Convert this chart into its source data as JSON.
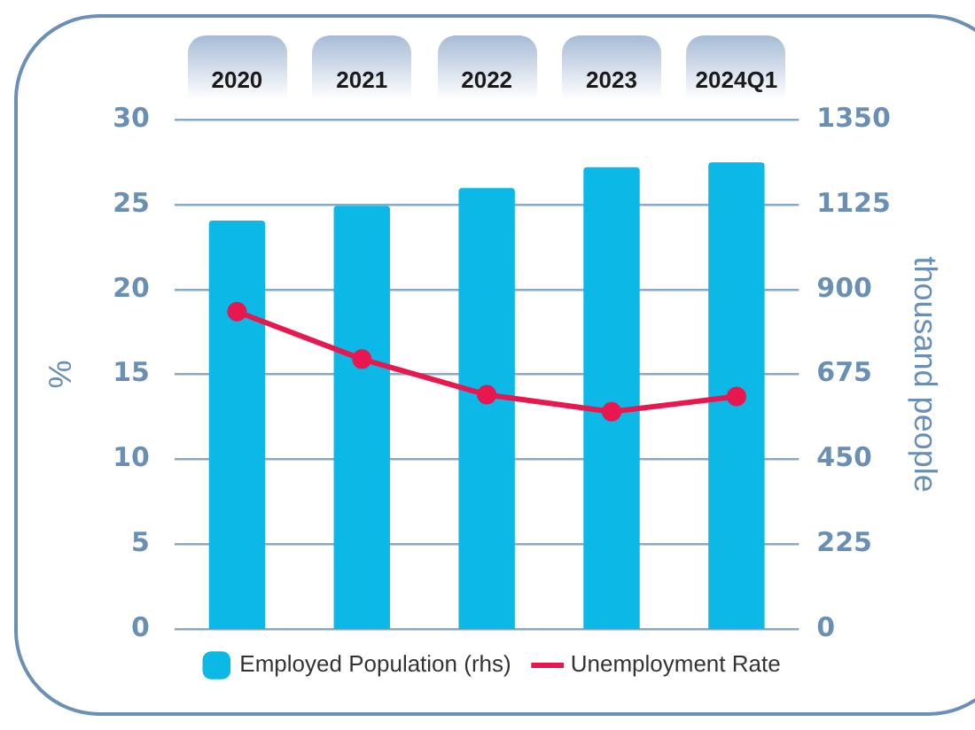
{
  "chart_data": {
    "type": "bar",
    "categories": [
      "2020",
      "2021",
      "2022",
      "2023",
      "2024Q1"
    ],
    "series": [
      {
        "name": "Employed Population (rhs)",
        "color": "#0bb8e6",
        "axis": "y2",
        "values": [
          1083,
          1122,
          1169,
          1224,
          1237
        ]
      },
      {
        "name": "Unemployment Rate",
        "type": "line",
        "color": "#e8174f",
        "values": [
          18.7,
          15.9,
          13.8,
          12.8,
          13.7
        ]
      }
    ],
    "ylabel": "%",
    "y2label": "thousand people",
    "ylim": [
      0,
      30
    ],
    "yticks": [
      0,
      5,
      10,
      15,
      20,
      25,
      30
    ],
    "y2lim": [
      0,
      1350
    ],
    "y2ticks": [
      0,
      225,
      450,
      675,
      900,
      1125,
      1350
    ],
    "grid": "y",
    "legend": "bottom",
    "marker": "circle",
    "line_style": "solid"
  }
}
